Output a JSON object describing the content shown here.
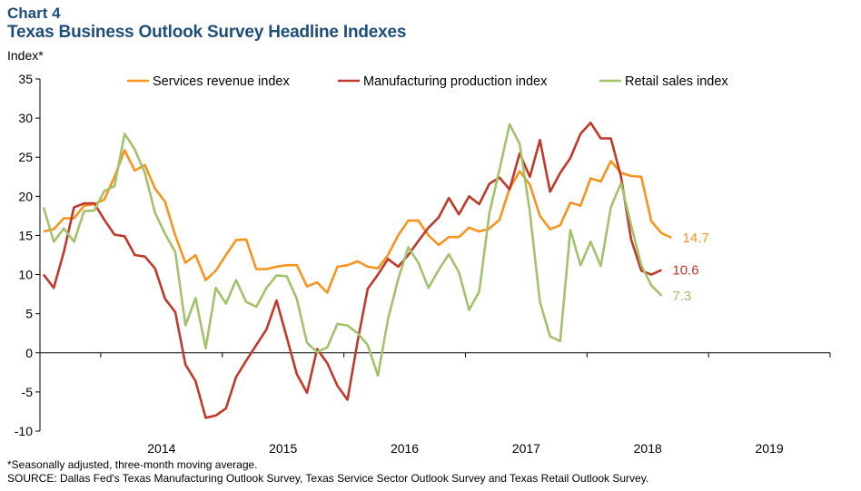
{
  "header": {
    "chart_label": "Chart 4",
    "title": "Texas Business Outlook Survey Headline Indexes"
  },
  "footnotes": {
    "note": "*Seasonally adjusted, three-month moving average.",
    "source": "SOURCE: Dallas Fed's Texas Manufacturing Outlook Survey, Texas Service Sector Outlook Survey and Texas Retail Outlook Survey."
  },
  "chart_data": {
    "type": "line",
    "ylabel": "Index*",
    "xlabel": "",
    "ylim": [
      -10,
      35
    ],
    "yticks": [
      -10,
      -5,
      0,
      5,
      10,
      15,
      20,
      25,
      30,
      35
    ],
    "xticks": [
      "2014",
      "2015",
      "2016",
      "2017",
      "2018",
      "2019"
    ],
    "x_start": "2013-07",
    "x_end": "2019-12",
    "legend_position": "top",
    "grid": false,
    "series": [
      {
        "name": "Services revenue index",
        "color": "#f7941d",
        "end_label": "14.7",
        "values": [
          15.5,
          15.8,
          17.2,
          17.2,
          18.8,
          19.0,
          19.6,
          22.5,
          25.9,
          23.3,
          24.0,
          21.0,
          19.3,
          15.0,
          11.5,
          12.5,
          9.3,
          10.5,
          12.5,
          14.4,
          14.5,
          10.7,
          10.7,
          11.0,
          11.2,
          11.2,
          8.5,
          9.0,
          7.7,
          11.0,
          11.2,
          11.7,
          11.0,
          10.8,
          12.5,
          15.0,
          16.9,
          16.9,
          15.0,
          13.8,
          14.8,
          14.8,
          16.0,
          15.5,
          15.9,
          17.0,
          21.0,
          23.2,
          21.5,
          17.5,
          15.8,
          16.3,
          19.2,
          18.8,
          22.3,
          21.9,
          24.5,
          23.0,
          22.6,
          22.5,
          16.8,
          15.3,
          14.7
        ]
      },
      {
        "name": "Manufacturing production index",
        "color": "#c0392b",
        "end_label": "10.6",
        "values": [
          10.0,
          8.3,
          12.9,
          18.6,
          19.1,
          19.1,
          17.0,
          15.1,
          14.9,
          12.5,
          12.3,
          10.8,
          6.9,
          5.2,
          -1.5,
          -3.6,
          -8.3,
          -8.0,
          -7.1,
          -3.1,
          -1.0,
          1.0,
          3.0,
          6.7,
          2.0,
          -2.7,
          -5.1,
          0.5,
          -1.3,
          -4.2,
          -6.0,
          1.5,
          8.2,
          10.0,
          12.0,
          11.0,
          12.5,
          14.3,
          16.0,
          17.3,
          19.8,
          17.7,
          20.0,
          19.0,
          21.6,
          22.4,
          20.9,
          25.5,
          22.5,
          27.2,
          20.6,
          23.0,
          24.9,
          28.0,
          29.4,
          27.4,
          27.4,
          22.5,
          14.5,
          10.5,
          10.0,
          10.6
        ]
      },
      {
        "name": "Retail sales index",
        "color": "#a3c26b",
        "end_label": "7.3",
        "values": [
          18.6,
          14.2,
          15.9,
          14.2,
          18.1,
          18.2,
          20.7,
          21.3,
          28.0,
          26.0,
          23.0,
          17.9,
          15.2,
          12.9,
          3.5,
          7.0,
          0.6,
          8.3,
          6.3,
          9.3,
          6.5,
          5.9,
          8.3,
          9.9,
          9.8,
          6.9,
          1.3,
          0.1,
          0.7,
          3.7,
          3.5,
          2.5,
          1.0,
          -2.9,
          4.3,
          9.4,
          13.5,
          11.5,
          8.3,
          10.6,
          12.6,
          10.3,
          5.5,
          7.8,
          17.8,
          23.4,
          29.2,
          26.7,
          18.0,
          6.5,
          2.1,
          1.5,
          15.7,
          11.2,
          14.2,
          11.1,
          18.6,
          21.7,
          16.3,
          11.2,
          8.6,
          7.3
        ]
      }
    ]
  }
}
